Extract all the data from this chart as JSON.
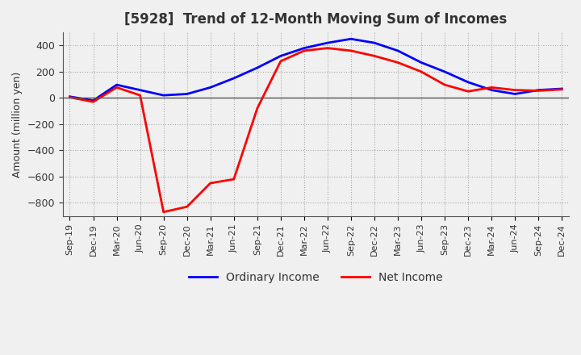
{
  "title": "[5928]  Trend of 12-Month Moving Sum of Incomes",
  "ylabel": "Amount (million yen)",
  "ylim": [
    -900,
    500
  ],
  "yticks": [
    400,
    200,
    0,
    -200,
    -400,
    -600,
    -800
  ],
  "legend_labels": [
    "Ordinary Income",
    "Net Income"
  ],
  "colors": [
    "blue",
    "red"
  ],
  "x_labels": [
    "Sep-19",
    "Dec-19",
    "Mar-20",
    "Jun-20",
    "Sep-20",
    "Dec-20",
    "Mar-21",
    "Jun-21",
    "Sep-21",
    "Dec-21",
    "Mar-22",
    "Jun-22",
    "Sep-22",
    "Dec-22",
    "Mar-23",
    "Jun-23",
    "Sep-23",
    "Dec-23",
    "Mar-24",
    "Jun-24",
    "Sep-24",
    "Dec-24"
  ],
  "ordinary_income": [
    10,
    -20,
    100,
    60,
    20,
    30,
    80,
    150,
    230,
    320,
    380,
    420,
    450,
    420,
    360,
    270,
    200,
    120,
    60,
    30,
    60,
    70
  ],
  "net_income": [
    5,
    -30,
    80,
    20,
    -870,
    -830,
    -650,
    -620,
    -80,
    280,
    360,
    380,
    360,
    320,
    270,
    200,
    100,
    50,
    80,
    60,
    55,
    65
  ],
  "line_width": 2.0,
  "background_color": "#f0f0f0",
  "grid_color": "#aaaaaa",
  "zero_line_color": "#555555"
}
